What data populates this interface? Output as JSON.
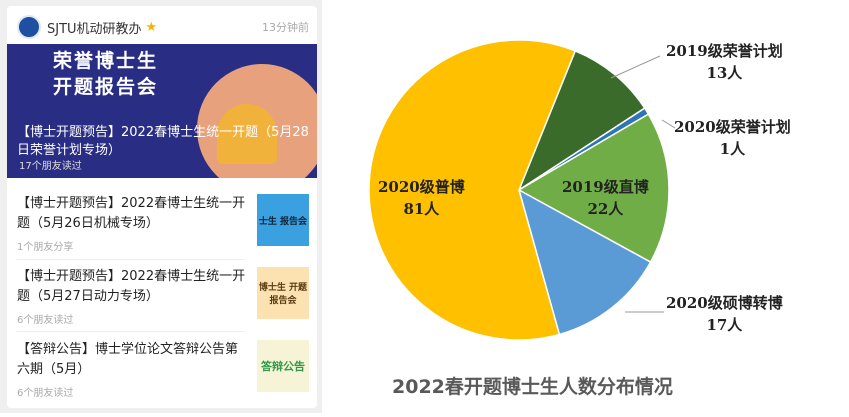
{
  "feed": {
    "account": "SJTU机动研教办",
    "time": "13分钟前",
    "logo_text": "SJTU",
    "featured": {
      "banner_title_1": "荣誉博士生",
      "banner_title_2": "开题报告会",
      "title": "【博士开题预告】2022春博士生统一开题（5月28日荣誉计划专场）",
      "meta": "17个朋友读过"
    },
    "items": [
      {
        "title": "【博士开题预告】2022春博士生统一开题（5月26日机械专场）",
        "meta": "1个朋友分享",
        "thumb_text": "士生 报告会",
        "thumb_color": "#3aa0e0"
      },
      {
        "title": "【博士开题预告】2022春博士生统一开题（5月27日动力专场）",
        "meta": "6个朋友读过",
        "thumb_text": "博士生 开题报告会",
        "thumb_color": "#fbe2b0"
      },
      {
        "title": "【答辩公告】博士学位论文答辩公告第六期（5月）",
        "meta": "6个朋友读过",
        "thumb_text": "答辩公告",
        "thumb_color": "#f7f3d6"
      }
    ]
  },
  "chart_data": {
    "type": "pie",
    "title": "2022春开题博士生人数分布情况",
    "slices": [
      {
        "name": "2019级荣誉计划",
        "value": 13,
        "label": "13人",
        "color": "#3b6b2a"
      },
      {
        "name": "2020级荣誉计划",
        "value": 1,
        "label": "1人",
        "color": "#2e75b6"
      },
      {
        "name": "2019级直博",
        "value": 22,
        "label": "22人",
        "color": "#70ad47"
      },
      {
        "name": "2020级硕博转博",
        "value": 17,
        "label": "17人",
        "color": "#5b9bd5"
      },
      {
        "name": "2020级普博",
        "value": 81,
        "label": "81人",
        "color": "#ffc000"
      }
    ]
  }
}
